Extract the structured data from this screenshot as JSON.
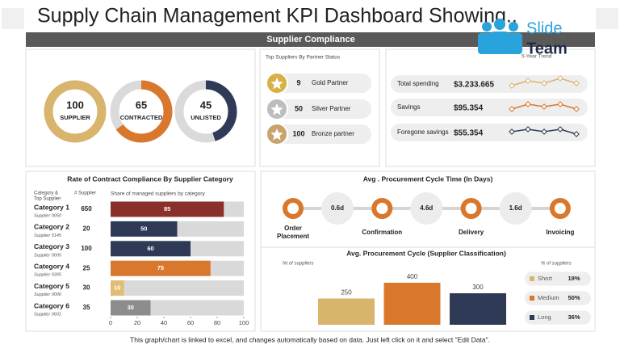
{
  "header": {
    "title": "Supply Chain Management KPI Dashboard Showing..",
    "logo_top": "Slide",
    "logo_bottom": "Team",
    "section": "Supplier Compliance"
  },
  "donuts": [
    {
      "value": 100,
      "label": "SUPPLIER",
      "color": "#d8b46c"
    },
    {
      "value": 65,
      "label": "CONTRACTED",
      "color": "#d9782c"
    },
    {
      "value": 45,
      "label": "UNLISTED",
      "color": "#2f3a56"
    }
  ],
  "partners": {
    "title": "Top Suppliers By Partner Status",
    "rows": [
      {
        "value": 9,
        "label": "Gold Partner",
        "color": "#d8b144"
      },
      {
        "value": 50,
        "label": "Silver Partner",
        "color": "#bdbdbd"
      },
      {
        "value": 100,
        "label": "Bronze partner",
        "color": "#c9a36c"
      }
    ]
  },
  "trend": {
    "title": "5-Year Trend",
    "rows": [
      {
        "label": "Total spending",
        "value": "$3.233.665",
        "color": "#d8b46c",
        "values": [
          2,
          4,
          3,
          5,
          3
        ]
      },
      {
        "label": "Savings",
        "value": "$95.354",
        "color": "#d9782c",
        "values": [
          2,
          4,
          3,
          4,
          2
        ]
      },
      {
        "label": "Foregone savings",
        "value": "$55.354",
        "color": "#2f3a56",
        "values": [
          3,
          4,
          3,
          4,
          2
        ]
      }
    ]
  },
  "compliance": {
    "title": "Rate of Contract Compliance By Supplier Category",
    "header_category": [
      "Category &",
      "Top Supplier"
    ],
    "header_count": "# Supplier",
    "header_share": "Share of managed suppliers by category",
    "xlim": [
      0,
      100
    ],
    "xticks": [
      0,
      20,
      40,
      60,
      80,
      100
    ],
    "rows": [
      {
        "category": "Category 1",
        "supplier": "Supplier 0050",
        "count": 650,
        "value": 85,
        "color": "#8a2f2a"
      },
      {
        "category": "Category 2",
        "supplier": "Supplier 0145",
        "count": 20,
        "value": 50,
        "color": "#2f3a56"
      },
      {
        "category": "Category 3",
        "supplier": "Supplier 0005",
        "count": 100,
        "value": 60,
        "color": "#2f3a56"
      },
      {
        "category": "Category 4",
        "supplier": "Supplier 0305",
        "count": 25,
        "value": 75,
        "color": "#d9782c"
      },
      {
        "category": "Category 5",
        "supplier": "Supplier 0006",
        "count": 30,
        "value": 10,
        "color": "#e0bd74"
      },
      {
        "category": "Category 6",
        "supplier": "Supplier 0601",
        "count": 35,
        "value": 30,
        "color": "#8c8c8c"
      }
    ]
  },
  "cycle": {
    "title": "Avg . Procurement Cycle Time (In Days)",
    "steps": [
      [
        "Order",
        "Placement"
      ],
      [
        "Confirmation"
      ],
      [
        "Delivery"
      ],
      [
        "Invoicing"
      ]
    ],
    "durations": [
      "0.6d",
      "4.6d",
      "1.6d"
    ]
  },
  "classification": {
    "title": "Avg. Procurement  Cycle (Supplier Classification)",
    "count_label": "Nr.of suppliers",
    "share_label": "% of suppliers",
    "bars": [
      {
        "value": 250,
        "color": "#d8b46c"
      },
      {
        "value": 400,
        "color": "#d9782c"
      },
      {
        "value": 300,
        "color": "#2f3a56"
      }
    ],
    "legend": [
      {
        "name": "Short",
        "value": "19%",
        "color": "#d8b46c"
      },
      {
        "name": "Medium",
        "value": "50%",
        "color": "#d9782c"
      },
      {
        "name": "Long",
        "value": "36%",
        "color": "#2f3a56"
      }
    ]
  },
  "footer": "This graph/chart is linked to excel, and changes automatically based on data. Just left click on it and select \"Edit Data\"."
}
